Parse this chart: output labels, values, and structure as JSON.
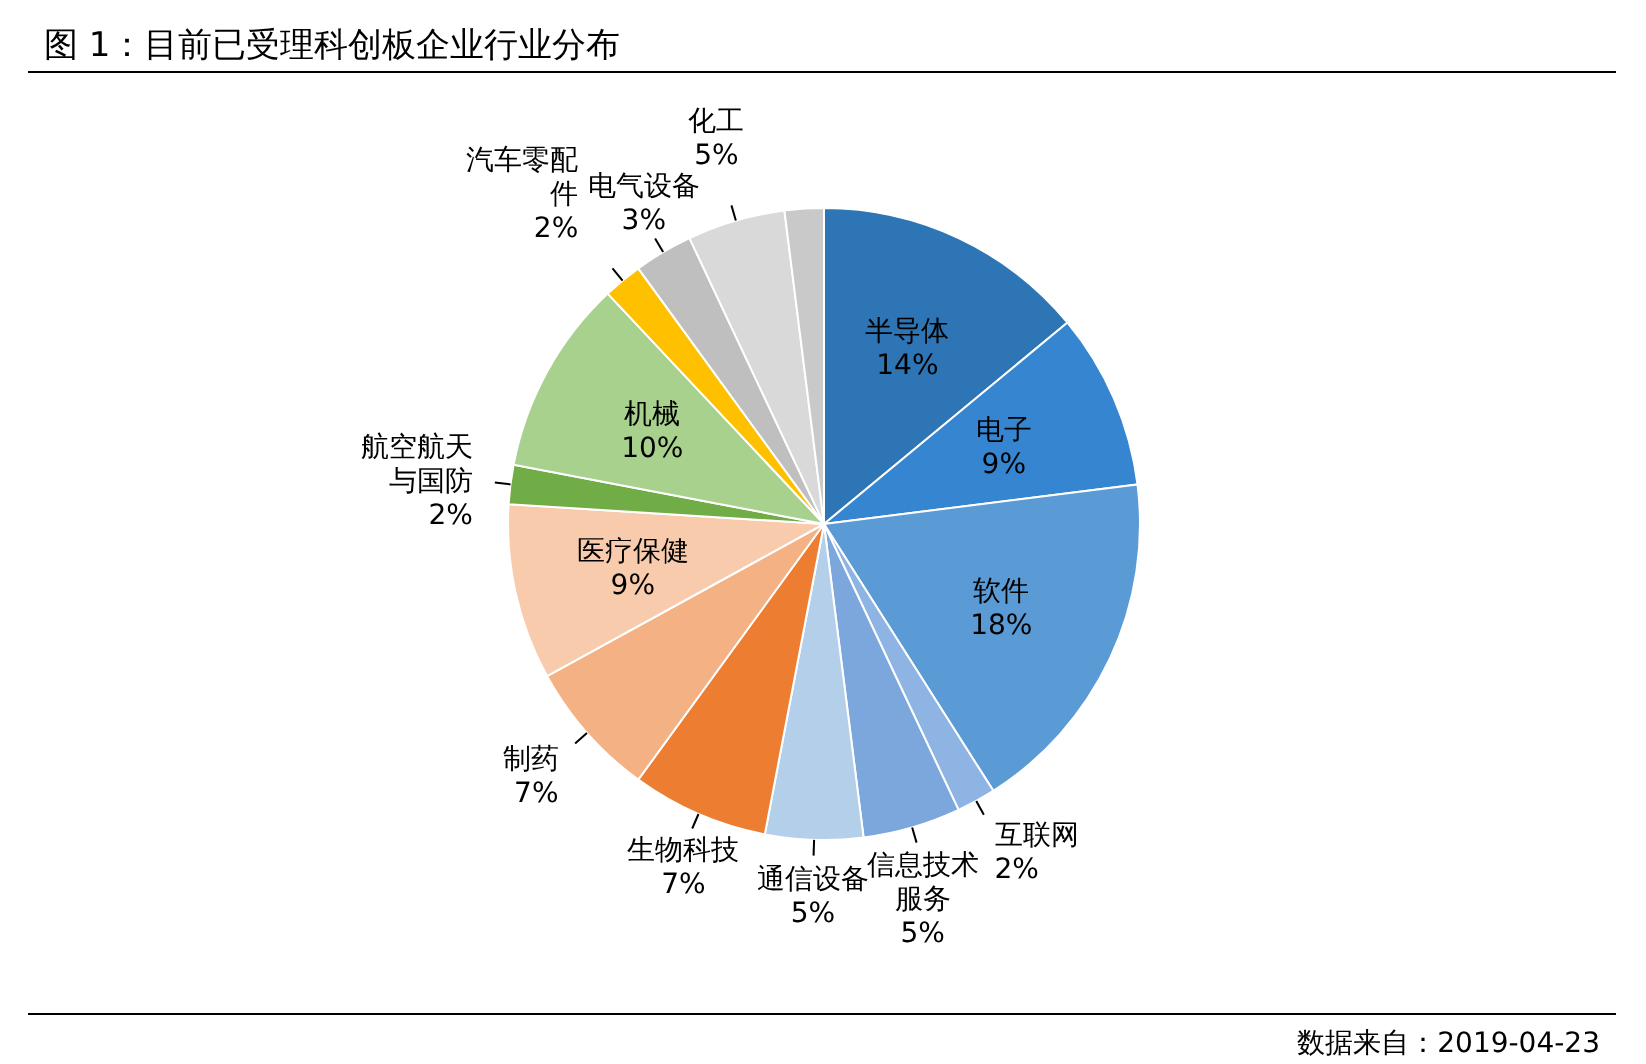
{
  "chart_data": {
    "type": "pie",
    "title": "图 1：目前已受理科创板企业行业分布",
    "categories": [
      "半导体",
      "电子",
      "软件",
      "互联网",
      "信息技术服务",
      "通信设备",
      "生物科技",
      "制药",
      "医疗保健",
      "航空航天与国防",
      "机械",
      "汽车零配件",
      "电气设备",
      "化工",
      null
    ],
    "values": [
      14,
      9,
      18,
      2,
      5,
      5,
      7,
      7,
      9,
      2,
      10,
      2,
      3,
      5,
      2
    ],
    "value_labels": [
      "14%",
      "9%",
      "18%",
      "2%",
      "5%",
      "5%",
      "7%",
      "7%",
      "9%",
      "2%",
      "10%",
      "2%",
      "3%",
      "5%",
      null
    ],
    "colors": [
      "#2e75b6",
      "#3585d0",
      "#5b9bd5",
      "#8db4e2",
      "#7ba7dc",
      "#b4cfea",
      "#ed7d31",
      "#f4b183",
      "#f8cbad",
      "#70ad47",
      "#a9d18e",
      "#ffc000",
      "#bfbfbf",
      "#d9d9d9",
      "#c9c9c9"
    ],
    "annotations": [
      "数据来自：2019-04-23"
    ]
  }
}
